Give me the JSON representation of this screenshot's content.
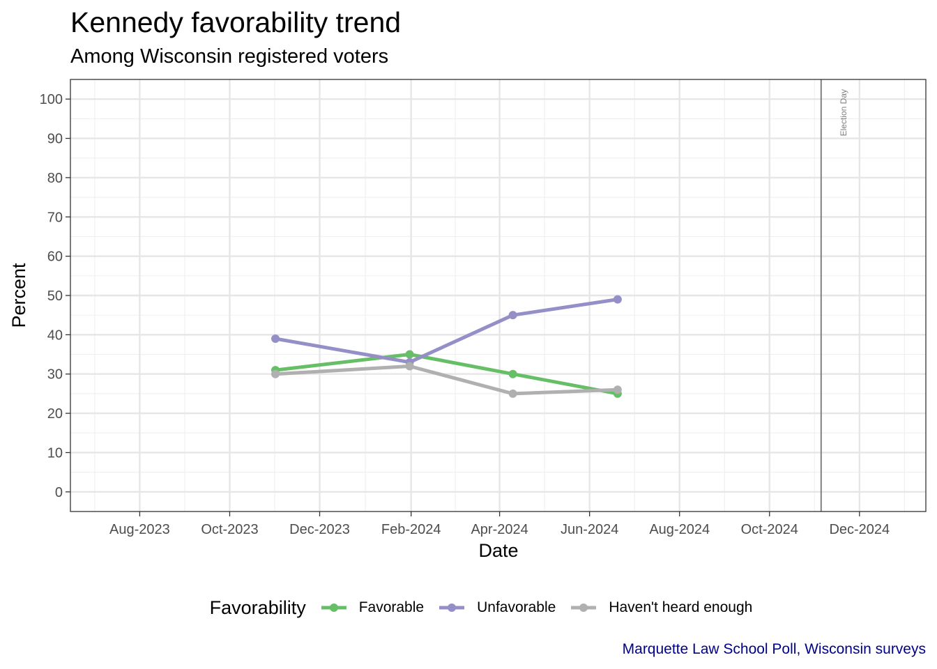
{
  "chart_data": {
    "type": "line",
    "title": "Kennedy favorability trend",
    "subtitle": "Among Wisconsin registered voters",
    "xlabel": "Date",
    "ylabel": "Percent",
    "caption": "Marquette Law School Poll, Wisconsin surveys",
    "legend_title": "Favorability",
    "legend_position": "bottom",
    "grid": true,
    "xlim": [
      "2023-06-15",
      "2025-01-15"
    ],
    "ylim": [
      -5,
      105
    ],
    "x_ticks": [
      {
        "date": "2023-08-01",
        "label": "Aug-2023"
      },
      {
        "date": "2023-10-01",
        "label": "Oct-2023"
      },
      {
        "date": "2023-12-01",
        "label": "Dec-2023"
      },
      {
        "date": "2024-02-01",
        "label": "Feb-2024"
      },
      {
        "date": "2024-04-01",
        "label": "Apr-2024"
      },
      {
        "date": "2024-06-01",
        "label": "Jun-2024"
      },
      {
        "date": "2024-08-01",
        "label": "Aug-2024"
      },
      {
        "date": "2024-10-01",
        "label": "Oct-2024"
      },
      {
        "date": "2024-12-01",
        "label": "Dec-2024"
      }
    ],
    "y_ticks": [
      0,
      10,
      20,
      30,
      40,
      50,
      60,
      70,
      80,
      90,
      100
    ],
    "annotation": {
      "label": "Election Day",
      "date": "2024-11-05"
    },
    "x": [
      "2023-11-01",
      "2024-01-31",
      "2024-04-10",
      "2024-06-20"
    ],
    "series": [
      {
        "name": "Favorable",
        "color": "#66bf67",
        "values": [
          31,
          35,
          30,
          25
        ]
      },
      {
        "name": "Unfavorable",
        "color": "#958fc7",
        "values": [
          39,
          33,
          45,
          49
        ]
      },
      {
        "name": "Haven't heard enough",
        "color": "#b0b0b0",
        "values": [
          30,
          32,
          25,
          26
        ]
      }
    ]
  }
}
